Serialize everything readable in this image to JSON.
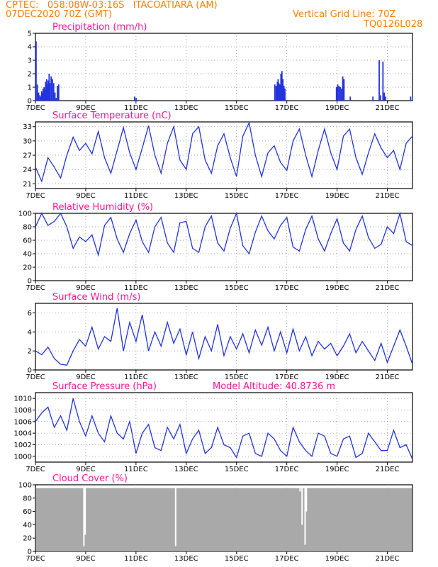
{
  "header": {
    "line1": "CPTEC:   058:08W-03:16S   ITACOATIARA (AM)",
    "line2": "07DEC2020 70Z (GMT)",
    "right1": "Vertical Grid Line: 70Z",
    "right2": "TQ0126L028"
  },
  "colors": {
    "line": "#2233dd",
    "cloud": "#a9a9a9",
    "title": "#ff1493",
    "header": "#ff7f00",
    "grid": "#888888"
  },
  "chart_data": [
    {
      "type": "bar",
      "title": "Precipitation (mm/h)",
      "ylim": [
        0,
        5
      ],
      "yticks": [
        "0",
        "1",
        "2",
        "3",
        "4",
        "5"
      ],
      "xticks": [
        "7DEC",
        "9DEC",
        "11DEC",
        "13DEC",
        "15DEC",
        "17DEC",
        "19DEC",
        "21DEC"
      ],
      "x_days": [
        7.0,
        7.05,
        7.1,
        7.15,
        7.18,
        7.22,
        7.25,
        7.28,
        7.32,
        7.35,
        7.38,
        7.42,
        7.45,
        7.48,
        7.52,
        7.55,
        7.6,
        7.65,
        7.7,
        7.75,
        7.8,
        7.85,
        7.9,
        10.92,
        10.98,
        16.5,
        16.55,
        16.6,
        16.63,
        16.66,
        16.7,
        16.74,
        16.78,
        16.82,
        16.86,
        16.9,
        18.95,
        19.0,
        19.05,
        19.1,
        19.15,
        19.2,
        19.25,
        19.5,
        20.4,
        20.65,
        20.7,
        20.8,
        20.85,
        20.9,
        21.9
      ],
      "values": [
        4.4,
        1.2,
        0.6,
        0.4,
        0.3,
        0.7,
        0.6,
        0.9,
        1.0,
        0.8,
        1.4,
        1.6,
        1.2,
        1.5,
        2.0,
        1.3,
        1.8,
        1.6,
        1.3,
        0.6,
        0.2,
        1.1,
        1.2,
        0.3,
        0.2,
        1.2,
        1.1,
        1.4,
        1.6,
        1.3,
        1.2,
        2.0,
        2.2,
        1.6,
        1.1,
        0.9,
        1.0,
        1.2,
        1.1,
        1.0,
        0.9,
        1.8,
        1.6,
        0.3,
        0.3,
        3.0,
        0.4,
        2.9,
        0.6,
        0.3,
        0.3
      ]
    },
    {
      "type": "line",
      "title": "Surface Temperature (nC)",
      "ylim": [
        20,
        34
      ],
      "yticks": [
        "21",
        "24",
        "27",
        "30",
        "33"
      ],
      "xticks": [
        "7DEC",
        "9DEC",
        "11DEC",
        "13DEC",
        "15DEC",
        "17DEC",
        "19DEC",
        "21DEC"
      ],
      "x_days": [
        7.0,
        7.25,
        7.5,
        7.75,
        8.0,
        8.25,
        8.5,
        8.75,
        9.0,
        9.25,
        9.5,
        9.75,
        10.0,
        10.25,
        10.5,
        10.75,
        11.0,
        11.25,
        11.5,
        11.75,
        12.0,
        12.25,
        12.5,
        12.75,
        13.0,
        13.25,
        13.5,
        13.75,
        14.0,
        14.25,
        14.5,
        14.75,
        15.0,
        15.25,
        15.5,
        15.75,
        16.0,
        16.25,
        16.5,
        16.75,
        17.0,
        17.25,
        17.5,
        17.75,
        18.0,
        18.25,
        18.5,
        18.75,
        19.0,
        19.25,
        19.5,
        19.75,
        20.0,
        20.25,
        20.5,
        20.75,
        21.0,
        21.25,
        21.5,
        21.75,
        22.0
      ],
      "values": [
        24.5,
        21.5,
        26.5,
        24.5,
        22.2,
        27.0,
        30.8,
        28.0,
        29.5,
        27.3,
        32.0,
        26.5,
        23.2,
        28.0,
        32.8,
        27.5,
        24.0,
        28.5,
        33.2,
        27.0,
        23.2,
        29.5,
        33.0,
        26.0,
        24.0,
        31.5,
        33.0,
        26.0,
        23.2,
        29.0,
        31.5,
        26.5,
        22.5,
        31.0,
        33.8,
        27.0,
        22.5,
        27.5,
        29.0,
        25.5,
        23.8,
        30.0,
        32.5,
        27.0,
        22.5,
        28.0,
        32.5,
        27.5,
        24.0,
        31.0,
        32.5,
        26.5,
        23.0,
        27.5,
        31.5,
        28.5,
        26.5,
        28.0,
        24.0,
        29.5,
        31.0
      ]
    },
    {
      "type": "line",
      "title": "Relative Humidity (%)",
      "ylim": [
        0,
        100
      ],
      "yticks": [
        "0",
        "20",
        "40",
        "60",
        "80",
        "100"
      ],
      "xticks": [
        "7DEC",
        "9DEC",
        "11DEC",
        "13DEC",
        "15DEC",
        "17DEC",
        "19DEC",
        "21DEC"
      ],
      "x_days": [
        7.0,
        7.25,
        7.5,
        7.75,
        8.0,
        8.25,
        8.5,
        8.75,
        9.0,
        9.25,
        9.5,
        9.75,
        10.0,
        10.25,
        10.5,
        10.75,
        11.0,
        11.25,
        11.5,
        11.75,
        12.0,
        12.25,
        12.5,
        12.75,
        13.0,
        13.25,
        13.5,
        13.75,
        14.0,
        14.25,
        14.5,
        14.75,
        15.0,
        15.25,
        15.5,
        15.75,
        16.0,
        16.25,
        16.5,
        16.75,
        17.0,
        17.25,
        17.5,
        17.75,
        18.0,
        18.25,
        18.5,
        18.75,
        19.0,
        19.25,
        19.5,
        19.75,
        20.0,
        20.25,
        20.5,
        20.75,
        21.0,
        21.25,
        21.5,
        21.75,
        22.0
      ],
      "values": [
        80,
        100,
        82,
        88,
        100,
        80,
        48,
        65,
        58,
        68,
        38,
        82,
        94,
        62,
        42,
        70,
        90,
        58,
        42,
        80,
        94,
        56,
        42,
        86,
        88,
        48,
        42,
        80,
        96,
        56,
        44,
        78,
        100,
        52,
        40,
        72,
        96,
        74,
        62,
        82,
        94,
        50,
        44,
        76,
        96,
        62,
        44,
        70,
        92,
        56,
        44,
        76,
        96,
        64,
        48,
        54,
        80,
        70,
        100,
        58,
        52
      ]
    },
    {
      "type": "line",
      "title": "Surface Wind (m/s)",
      "ylim": [
        0,
        7
      ],
      "yticks": [
        "0",
        "2",
        "4",
        "6"
      ],
      "xticks": [
        "7DEC",
        "9DEC",
        "11DEC",
        "13DEC",
        "15DEC",
        "17DEC",
        "19DEC",
        "21DEC"
      ],
      "x_days": [
        7.0,
        7.25,
        7.5,
        7.75,
        8.0,
        8.25,
        8.5,
        8.75,
        9.0,
        9.25,
        9.5,
        9.75,
        10.0,
        10.25,
        10.5,
        10.75,
        11.0,
        11.25,
        11.5,
        11.75,
        12.0,
        12.25,
        12.5,
        12.75,
        13.0,
        13.25,
        13.5,
        13.75,
        14.0,
        14.25,
        14.5,
        14.75,
        15.0,
        15.25,
        15.5,
        15.75,
        16.0,
        16.25,
        16.5,
        16.75,
        17.0,
        17.25,
        17.5,
        17.75,
        18.0,
        18.25,
        18.5,
        18.75,
        19.0,
        19.25,
        19.5,
        19.75,
        20.0,
        20.25,
        20.5,
        20.75,
        21.0,
        21.25,
        21.5,
        21.75,
        22.0
      ],
      "values": [
        2.0,
        1.6,
        2.4,
        1.2,
        0.6,
        0.5,
        2.0,
        3.2,
        2.5,
        4.5,
        2.2,
        3.5,
        3.0,
        6.5,
        2.0,
        5.0,
        3.0,
        5.8,
        2.0,
        4.0,
        2.5,
        5.0,
        2.8,
        4.3,
        1.6,
        4.0,
        1.2,
        3.5,
        2.0,
        4.8,
        1.5,
        3.5,
        2.2,
        3.8,
        1.8,
        4.2,
        2.6,
        4.5,
        2.0,
        4.0,
        1.8,
        4.3,
        2.0,
        3.5,
        1.5,
        3.0,
        2.2,
        2.8,
        1.5,
        2.5,
        3.8,
        1.8,
        3.0,
        2.0,
        1.0,
        2.8,
        0.8,
        2.5,
        4.2,
        2.5,
        0.6
      ]
    },
    {
      "type": "line",
      "title": "Surface Pressure (hPa)",
      "annotation": "Model Altitude: 40.8736 m",
      "ylim": [
        999,
        1011
      ],
      "yticks": [
        "1000",
        "1002",
        "1004",
        "1006",
        "1008",
        "1010"
      ],
      "xticks": [
        "7DEC",
        "9DEC",
        "11DEC",
        "13DEC",
        "15DEC",
        "17DEC",
        "19DEC",
        "21DEC"
      ],
      "x_days": [
        7.0,
        7.25,
        7.5,
        7.75,
        8.0,
        8.25,
        8.5,
        8.75,
        9.0,
        9.25,
        9.5,
        9.75,
        10.0,
        10.25,
        10.5,
        10.75,
        11.0,
        11.25,
        11.5,
        11.75,
        12.0,
        12.25,
        12.5,
        12.75,
        13.0,
        13.25,
        13.5,
        13.75,
        14.0,
        14.25,
        14.5,
        14.75,
        15.0,
        15.25,
        15.5,
        15.75,
        16.0,
        16.25,
        16.5,
        16.75,
        17.0,
        17.25,
        17.5,
        17.75,
        18.0,
        18.25,
        18.5,
        18.75,
        19.0,
        19.25,
        19.5,
        19.75,
        20.0,
        20.25,
        20.5,
        20.75,
        21.0,
        21.25,
        21.5,
        21.75,
        22.0
      ],
      "values": [
        1006,
        1007.5,
        1008.5,
        1005,
        1007,
        1004.5,
        1010,
        1006,
        1003.5,
        1007,
        1004,
        1002.5,
        1007,
        1004,
        1003,
        1006,
        1000.5,
        1004,
        1005.5,
        1001.5,
        1001,
        1005,
        1003,
        1005.5,
        1000.5,
        1003,
        1004.5,
        1000.5,
        1001.5,
        1005,
        1002,
        1001.5,
        999.8,
        1003.5,
        1004,
        1000.5,
        1000,
        1004,
        1003,
        1001,
        1000,
        1005,
        1002.5,
        1001,
        1000,
        1004,
        1003.5,
        1000.5,
        1000,
        1003,
        1003.5,
        999.8,
        1000.5,
        1004,
        1002.5,
        1001,
        1001,
        1004.5,
        1001.5,
        1002,
        999.5
      ]
    },
    {
      "type": "bar",
      "title": "Cloud Cover (%)",
      "ylim": [
        0,
        100
      ],
      "yticks": [
        "0",
        "20",
        "40",
        "60",
        "80",
        "100"
      ],
      "xticks": [
        "7DEC",
        "9DEC",
        "11DEC",
        "13DEC",
        "15DEC",
        "17DEC",
        "19DEC",
        "21DEC"
      ],
      "baseline_value": 95,
      "dips_x_days": [
        8.9,
        8.95,
        12.55,
        17.5,
        17.58,
        17.7,
        17.75
      ],
      "dips_values": [
        8,
        25,
        8,
        90,
        40,
        10,
        60
      ]
    }
  ]
}
